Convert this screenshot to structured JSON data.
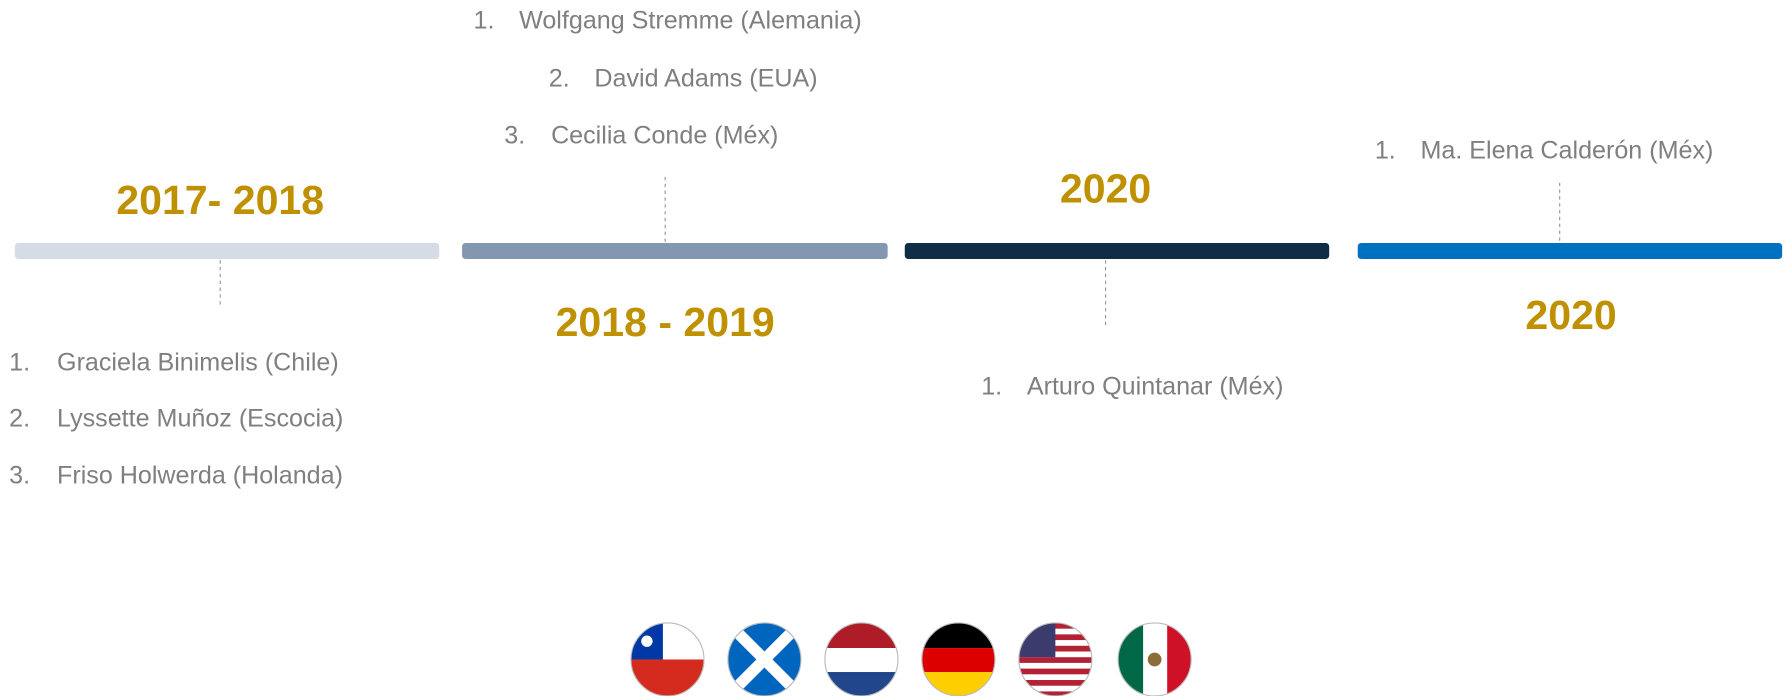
{
  "periods": [
    {
      "label": "2017- 2018",
      "items": [
        {
          "number": "1.",
          "name": "Graciela Binimelis  (Chile)"
        },
        {
          "number": "2.",
          "name": "Lyssette Muñoz  (Escocia)"
        },
        {
          "number": "3.",
          "name": "Friso Holwerda (Holanda)"
        }
      ]
    },
    {
      "label": "2018 - 2019",
      "items": [
        {
          "number": "1.",
          "name": "Wolfgang Stremme (Alemania)"
        },
        {
          "number": "2.",
          "name": "David Adams (EUA)"
        },
        {
          "number": "3.",
          "name": "Cecilia Conde (Méx)"
        }
      ]
    },
    {
      "label": "2020",
      "items": [
        {
          "number": "1.",
          "name": "Arturo Quintanar (Méx)"
        }
      ]
    },
    {
      "label": "2020",
      "items": [
        {
          "number": "1.",
          "name": "Ma. Elena Calderón (Méx)"
        }
      ]
    }
  ]
}
